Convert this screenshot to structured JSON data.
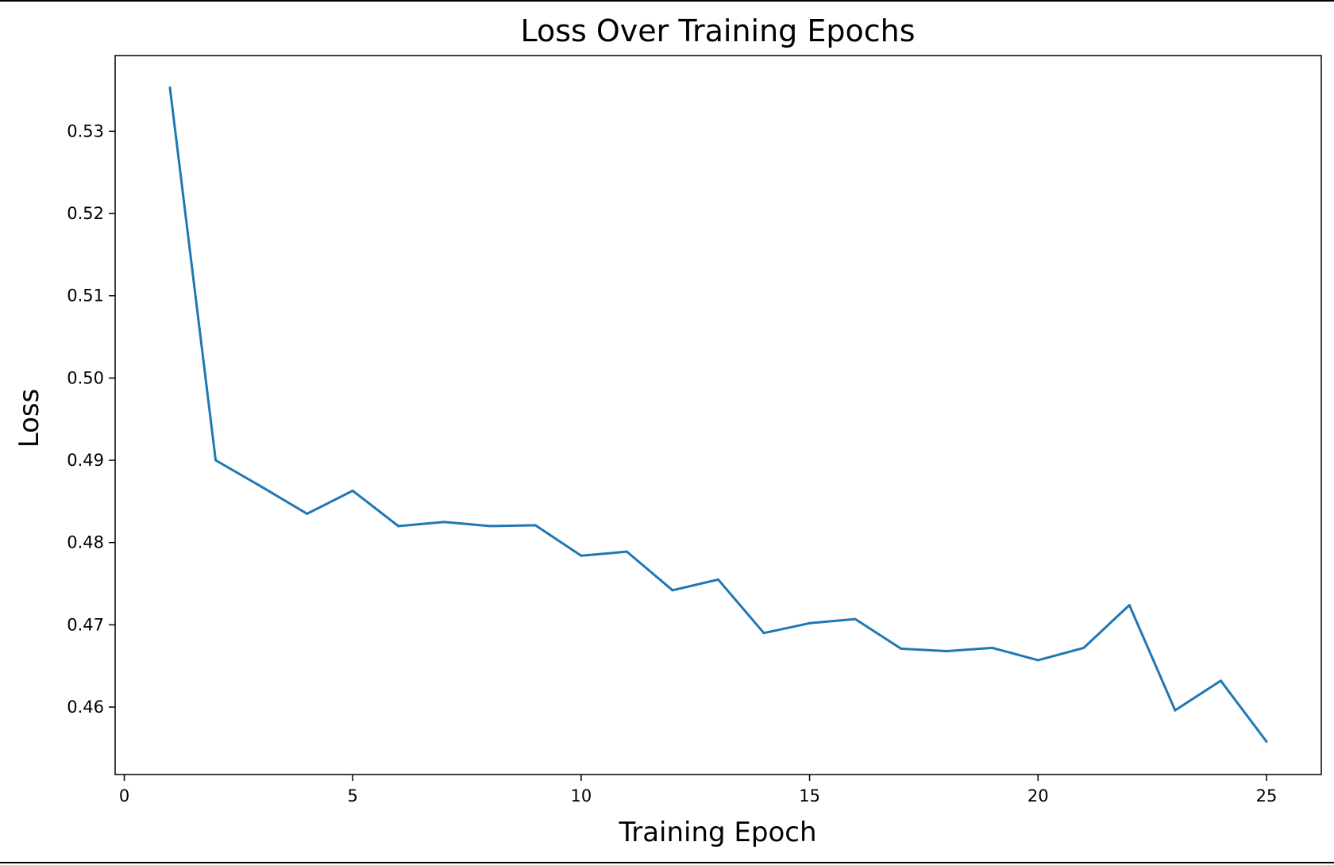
{
  "chart_data": {
    "type": "line",
    "title": "Loss Over Training Epochs",
    "xlabel": "Training Epoch",
    "ylabel": "Loss",
    "xlim": [
      -0.2,
      26.2
    ],
    "ylim": [
      0.4518,
      0.5392
    ],
    "grid": false,
    "legend": "none",
    "x_ticks": [
      0,
      5,
      10,
      15,
      20,
      25
    ],
    "x_tick_labels": [
      "0",
      "5",
      "10",
      "15",
      "20",
      "25"
    ],
    "y_ticks": [
      0.46,
      0.47,
      0.48,
      0.49,
      0.5,
      0.51,
      0.52,
      0.53
    ],
    "y_tick_labels": [
      "0.46",
      "0.47",
      "0.48",
      "0.49",
      "0.50",
      "0.51",
      "0.52",
      "0.53"
    ],
    "series": [
      {
        "color": "#1f77b4",
        "x": [
          1,
          2,
          3,
          4,
          5,
          6,
          7,
          8,
          9,
          10,
          11,
          12,
          13,
          14,
          15,
          16,
          17,
          18,
          19,
          20,
          21,
          22,
          23,
          24,
          25
        ],
        "y": [
          0.5353,
          0.49,
          0.4868,
          0.4835,
          0.4863,
          0.482,
          0.4825,
          0.482,
          0.4821,
          0.4784,
          0.4789,
          0.4742,
          0.4755,
          0.469,
          0.4702,
          0.4707,
          0.4671,
          0.4668,
          0.4672,
          0.4657,
          0.4672,
          0.4724,
          0.4596,
          0.4632,
          0.4558
        ]
      }
    ]
  }
}
